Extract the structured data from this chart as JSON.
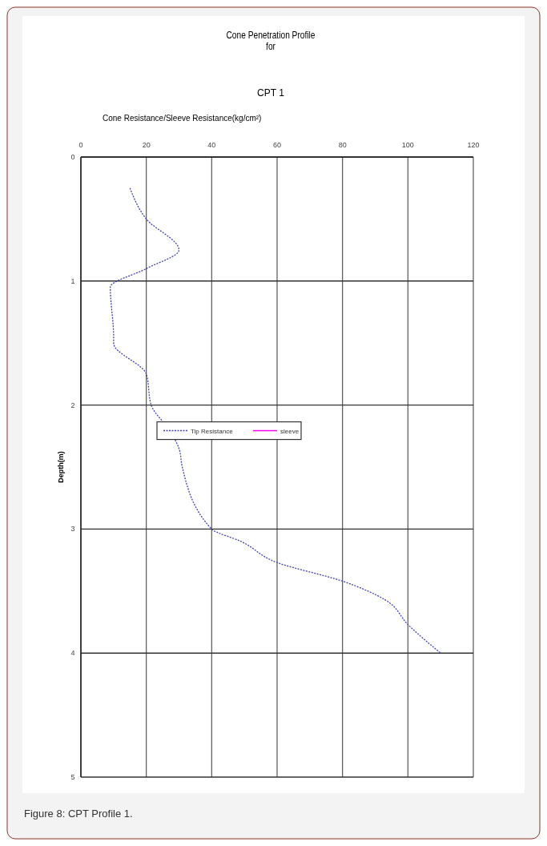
{
  "chart_data": {
    "type": "line",
    "title": "Cone Penetration  Profile\nfor",
    "subtitle": "CPT 1",
    "xlabel": "Cone Resistance/Sleeve Resistance(kg/cm²)",
    "ylabel": "Depth(m)",
    "xlim": [
      0,
      120
    ],
    "xticks": [
      0,
      20,
      40,
      60,
      80,
      100,
      120
    ],
    "ylim": [
      5,
      0
    ],
    "yticks": [
      0,
      1,
      2,
      3,
      4,
      5
    ],
    "grid": true,
    "legend": "left",
    "series": [
      {
        "name": "Tip Resistance",
        "color": "#4040b0",
        "line_style": "dotted",
        "x": [
          15,
          20,
          30,
          20,
          9,
          10,
          10,
          20,
          21.5,
          27,
          30,
          31,
          40,
          49,
          60,
          80,
          93,
          100,
          110
        ],
        "values": [
          0.25,
          0.5,
          0.75,
          0.9,
          1.05,
          1.45,
          1.5,
          1.75,
          2,
          2.2,
          2.35,
          2.5,
          3,
          3.1,
          3.27,
          3.42,
          3.57,
          3.77,
          4
        ]
      },
      {
        "name": "sleeve",
        "color": "#ff00ff",
        "line_style": "solid"
      }
    ],
    "annotations": [
      "Figure 8: CPT Profile 1."
    ]
  }
}
